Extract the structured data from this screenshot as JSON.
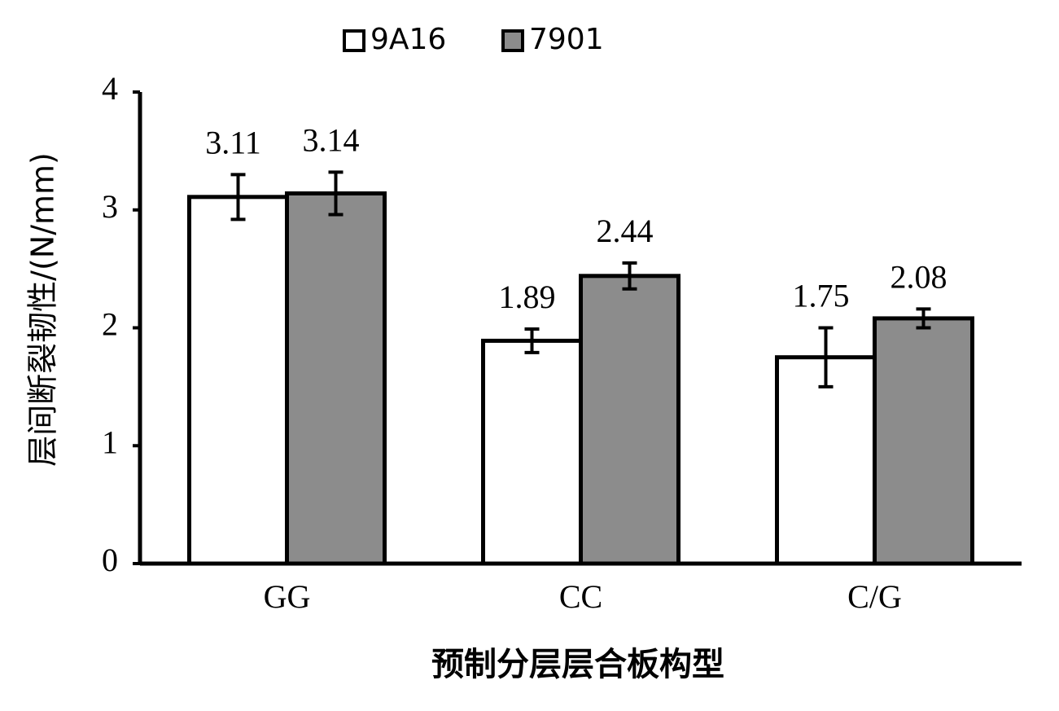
{
  "chart_data": {
    "type": "bar",
    "x_label": "预制分层层合板构型",
    "y_label": "层间断裂韧性/(N/mm)",
    "categories": [
      "GG",
      "CC",
      "C/G"
    ],
    "series": [
      {
        "name": "9A16",
        "color": "#ffffff",
        "values": [
          3.11,
          1.89,
          1.75
        ],
        "errors": [
          0.19,
          0.1,
          0.25
        ]
      },
      {
        "name": "7901",
        "color": "#8c8c8c",
        "values": [
          3.14,
          2.44,
          2.08
        ],
        "errors": [
          0.18,
          0.11,
          0.08
        ]
      }
    ],
    "ylim": [
      0,
      4
    ],
    "yticks": [
      0,
      1,
      2,
      3,
      4
    ],
    "grid": false,
    "legend": "top"
  }
}
